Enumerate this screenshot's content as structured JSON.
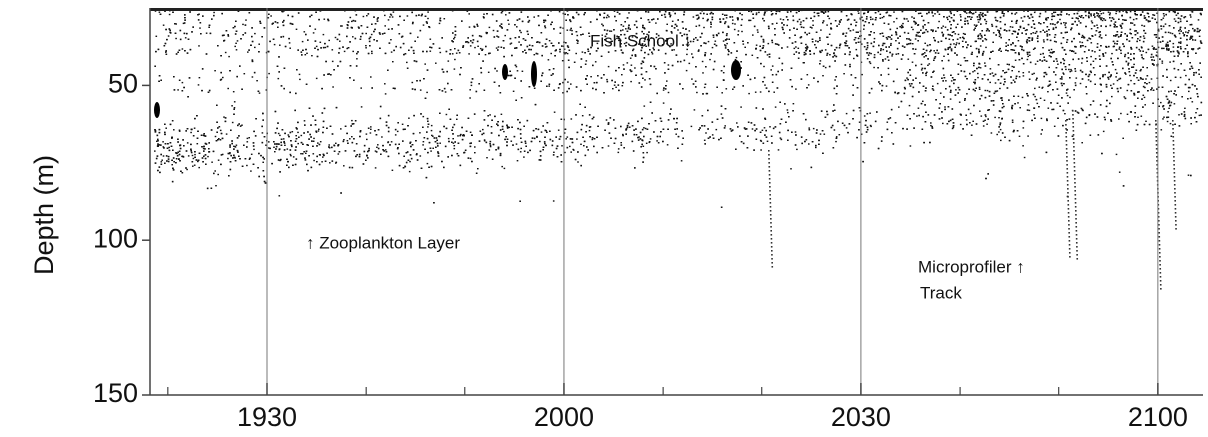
{
  "chart_data": {
    "type": "echogram",
    "y_label": "Depth  (m)",
    "ylim": [
      25,
      150
    ],
    "y_inverted": true,
    "yticks": [
      50,
      100,
      150
    ],
    "xlim": [
      19.303,
      21.076
    ],
    "xticks": [
      {
        "value": 19.5,
        "label": "1930"
      },
      {
        "value": 20,
        "label": "2000"
      },
      {
        "value": 20.5,
        "label": "2030"
      },
      {
        "value": 21,
        "label": "2100"
      }
    ],
    "xminorticks": [
      19.333,
      19.667,
      19.833,
      20.167,
      20.333,
      20.667,
      20.833
    ],
    "grid": true,
    "annotations": [
      "Fish School ↓",
      "↑ Zooplankton Layer",
      "Microprofiler ↑",
      "Track"
    ]
  }
}
